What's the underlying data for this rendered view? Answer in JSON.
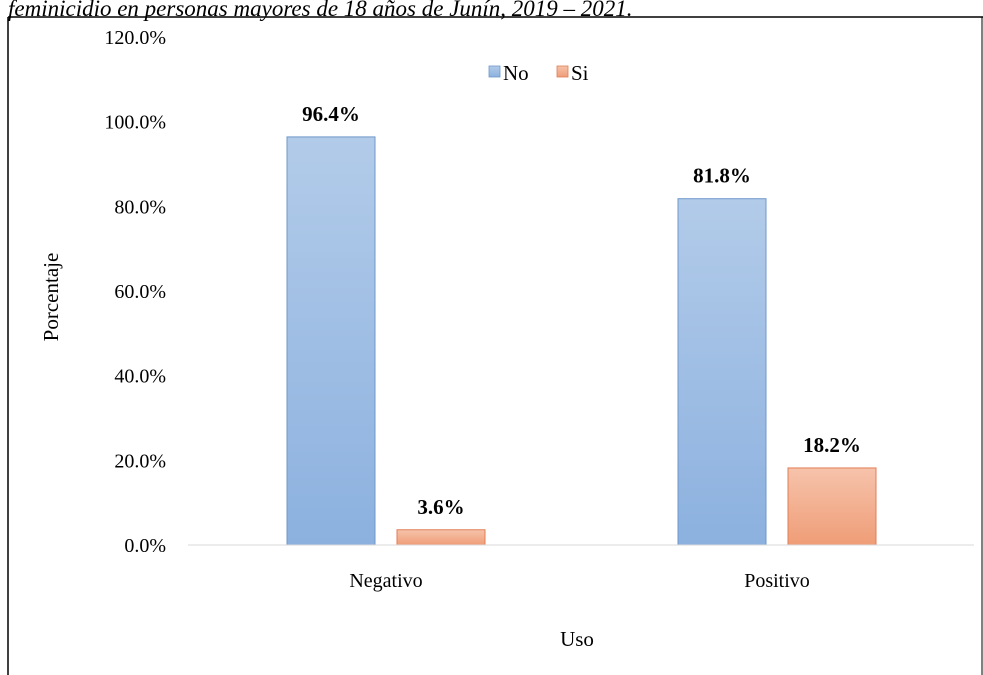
{
  "caption": "feminicidio en personas mayores de 18 años de Junín, 2019 – 2021.",
  "chart_data": {
    "type": "bar",
    "title": "",
    "xlabel": "Uso",
    "ylabel": "Porcentaje",
    "categories": [
      "Negativo",
      "Positivo"
    ],
    "series": [
      {
        "name": "No",
        "values": [
          96.4,
          81.8
        ],
        "labels": [
          "96.4%",
          "81.8%"
        ],
        "color": "#8fb4e0"
      },
      {
        "name": "Si",
        "values": [
          3.6,
          18.2
        ],
        "labels": [
          "3.6%",
          "18.2%"
        ],
        "color": "#f0a17c"
      }
    ],
    "ylim": [
      0,
      120
    ],
    "yticks": [
      "0.0%",
      "20.0%",
      "40.0%",
      "60.0%",
      "80.0%",
      "100.0%",
      "120.0%"
    ],
    "grid": false,
    "legend": "top-center"
  }
}
